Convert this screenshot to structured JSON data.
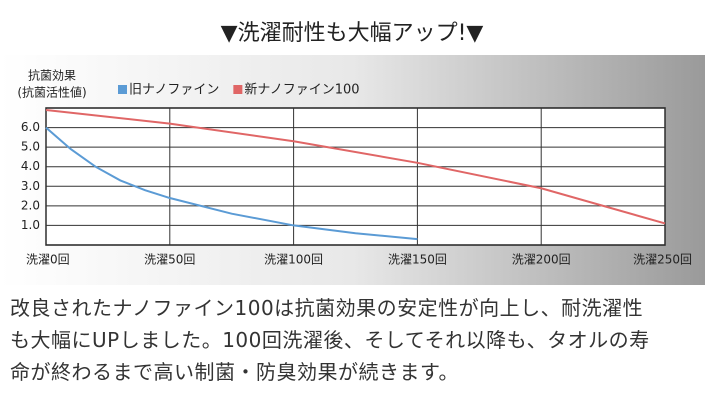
{
  "header": {
    "title": "▼洗濯耐性も大幅アップ!▼"
  },
  "chart_data": {
    "type": "line",
    "ylabel": [
      "抗菌効果",
      "(抗菌活性値)"
    ],
    "xlim": [
      0,
      250
    ],
    "ylim": [
      0,
      7
    ],
    "xticks": [
      {
        "value": 0,
        "label": "洗濯0回"
      },
      {
        "value": 50,
        "label": "洗濯50回"
      },
      {
        "value": 100,
        "label": "洗濯100回"
      },
      {
        "value": 150,
        "label": "洗濯150回"
      },
      {
        "value": 200,
        "label": "洗濯200回"
      },
      {
        "value": 250,
        "label": "洗濯250回"
      }
    ],
    "yticks": [
      {
        "value": 1,
        "label": "1.0"
      },
      {
        "value": 2,
        "label": "2.0"
      },
      {
        "value": 3,
        "label": "3.0"
      },
      {
        "value": 4,
        "label": "4.0"
      },
      {
        "value": 5,
        "label": "5.0"
      },
      {
        "value": 6,
        "label": "6.0"
      }
    ],
    "grid": true,
    "legend": "top-left",
    "series": [
      {
        "name": "旧ナノファイン",
        "color": "#5b9bd5",
        "x": [
          0,
          10,
          20,
          30,
          40,
          50,
          75,
          100,
          125,
          150
        ],
        "values": [
          6.0,
          4.9,
          4.0,
          3.3,
          2.8,
          2.4,
          1.6,
          1.0,
          0.6,
          0.3
        ]
      },
      {
        "name": "新ナノファイン100",
        "color": "#e06666",
        "x": [
          0,
          50,
          100,
          150,
          200,
          250
        ],
        "values": [
          6.9,
          6.2,
          5.3,
          4.2,
          2.9,
          1.1
        ]
      }
    ]
  },
  "body": {
    "lines": [
      "改良されたナノファイン100は抗菌効果の安定性が向上し、耐洗濯性",
      "も大幅にUPしました。100回洗濯後、そしてそれ以降も、タオルの寿",
      "命が終わるまで高い制菌・防臭効果が続きます。"
    ]
  }
}
